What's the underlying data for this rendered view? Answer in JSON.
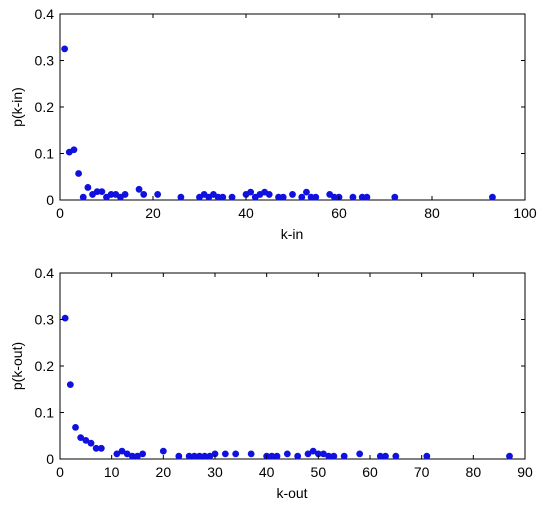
{
  "colors": {
    "marker": "#1010e0",
    "axis": "#000000",
    "background": "#ffffff"
  },
  "chart_data": [
    {
      "type": "scatter",
      "title": "",
      "xlabel": "k-in",
      "ylabel": "p(k-in)",
      "xlim": [
        0,
        100
      ],
      "ylim": [
        0,
        0.4
      ],
      "xticks": [
        "0",
        "20",
        "40",
        "60",
        "80",
        "100"
      ],
      "yticks": [
        "0",
        "0.1",
        "0.2",
        "0.3",
        "0.4"
      ],
      "grid": false,
      "series": [
        {
          "marker": "filled-circle",
          "x": [
            1,
            2,
            3,
            4,
            5,
            6,
            7,
            8,
            9,
            10,
            11,
            12,
            13,
            14,
            17,
            18,
            21,
            26,
            30,
            31,
            32,
            33,
            34,
            35,
            37,
            40,
            41,
            42,
            43,
            44,
            45,
            47,
            48,
            50,
            52,
            53,
            54,
            55,
            58,
            59,
            60,
            63,
            65,
            66,
            72,
            93
          ],
          "y": [
            0.325,
            0.103,
            0.108,
            0.057,
            0.006,
            0.027,
            0.012,
            0.018,
            0.018,
            0.006,
            0.012,
            0.012,
            0.006,
            0.012,
            0.023,
            0.012,
            0.012,
            0.006,
            0.006,
            0.012,
            0.006,
            0.012,
            0.006,
            0.006,
            0.006,
            0.012,
            0.017,
            0.006,
            0.012,
            0.017,
            0.012,
            0.006,
            0.006,
            0.012,
            0.006,
            0.017,
            0.006,
            0.006,
            0.012,
            0.006,
            0.006,
            0.006,
            0.006,
            0.006,
            0.006,
            0.006
          ]
        }
      ]
    },
    {
      "type": "scatter",
      "title": "",
      "xlabel": "k-out",
      "ylabel": "p(k-out)",
      "xlim": [
        0,
        90
      ],
      "ylim": [
        0,
        0.4
      ],
      "xticks": [
        "0",
        "10",
        "20",
        "30",
        "40",
        "50",
        "60",
        "70",
        "80",
        "90"
      ],
      "yticks": [
        "0",
        "0.1",
        "0.2",
        "0.3",
        "0.4"
      ],
      "grid": false,
      "series": [
        {
          "marker": "filled-circle",
          "x": [
            1,
            2,
            3,
            4,
            5,
            6,
            7,
            8,
            11,
            12,
            13,
            14,
            15,
            16,
            20,
            23,
            25,
            26,
            27,
            28,
            29,
            30,
            32,
            34,
            37,
            40,
            41,
            42,
            44,
            46,
            48,
            49,
            50,
            51,
            52,
            53,
            55,
            58,
            62,
            63,
            65,
            71,
            87
          ],
          "y": [
            0.303,
            0.16,
            0.068,
            0.046,
            0.04,
            0.034,
            0.023,
            0.023,
            0.011,
            0.017,
            0.011,
            0.006,
            0.006,
            0.011,
            0.017,
            0.006,
            0.006,
            0.006,
            0.006,
            0.006,
            0.006,
            0.011,
            0.011,
            0.011,
            0.011,
            0.006,
            0.006,
            0.006,
            0.011,
            0.006,
            0.011,
            0.017,
            0.011,
            0.011,
            0.006,
            0.006,
            0.006,
            0.011,
            0.006,
            0.006,
            0.006,
            0.006,
            0.006
          ]
        }
      ]
    }
  ]
}
